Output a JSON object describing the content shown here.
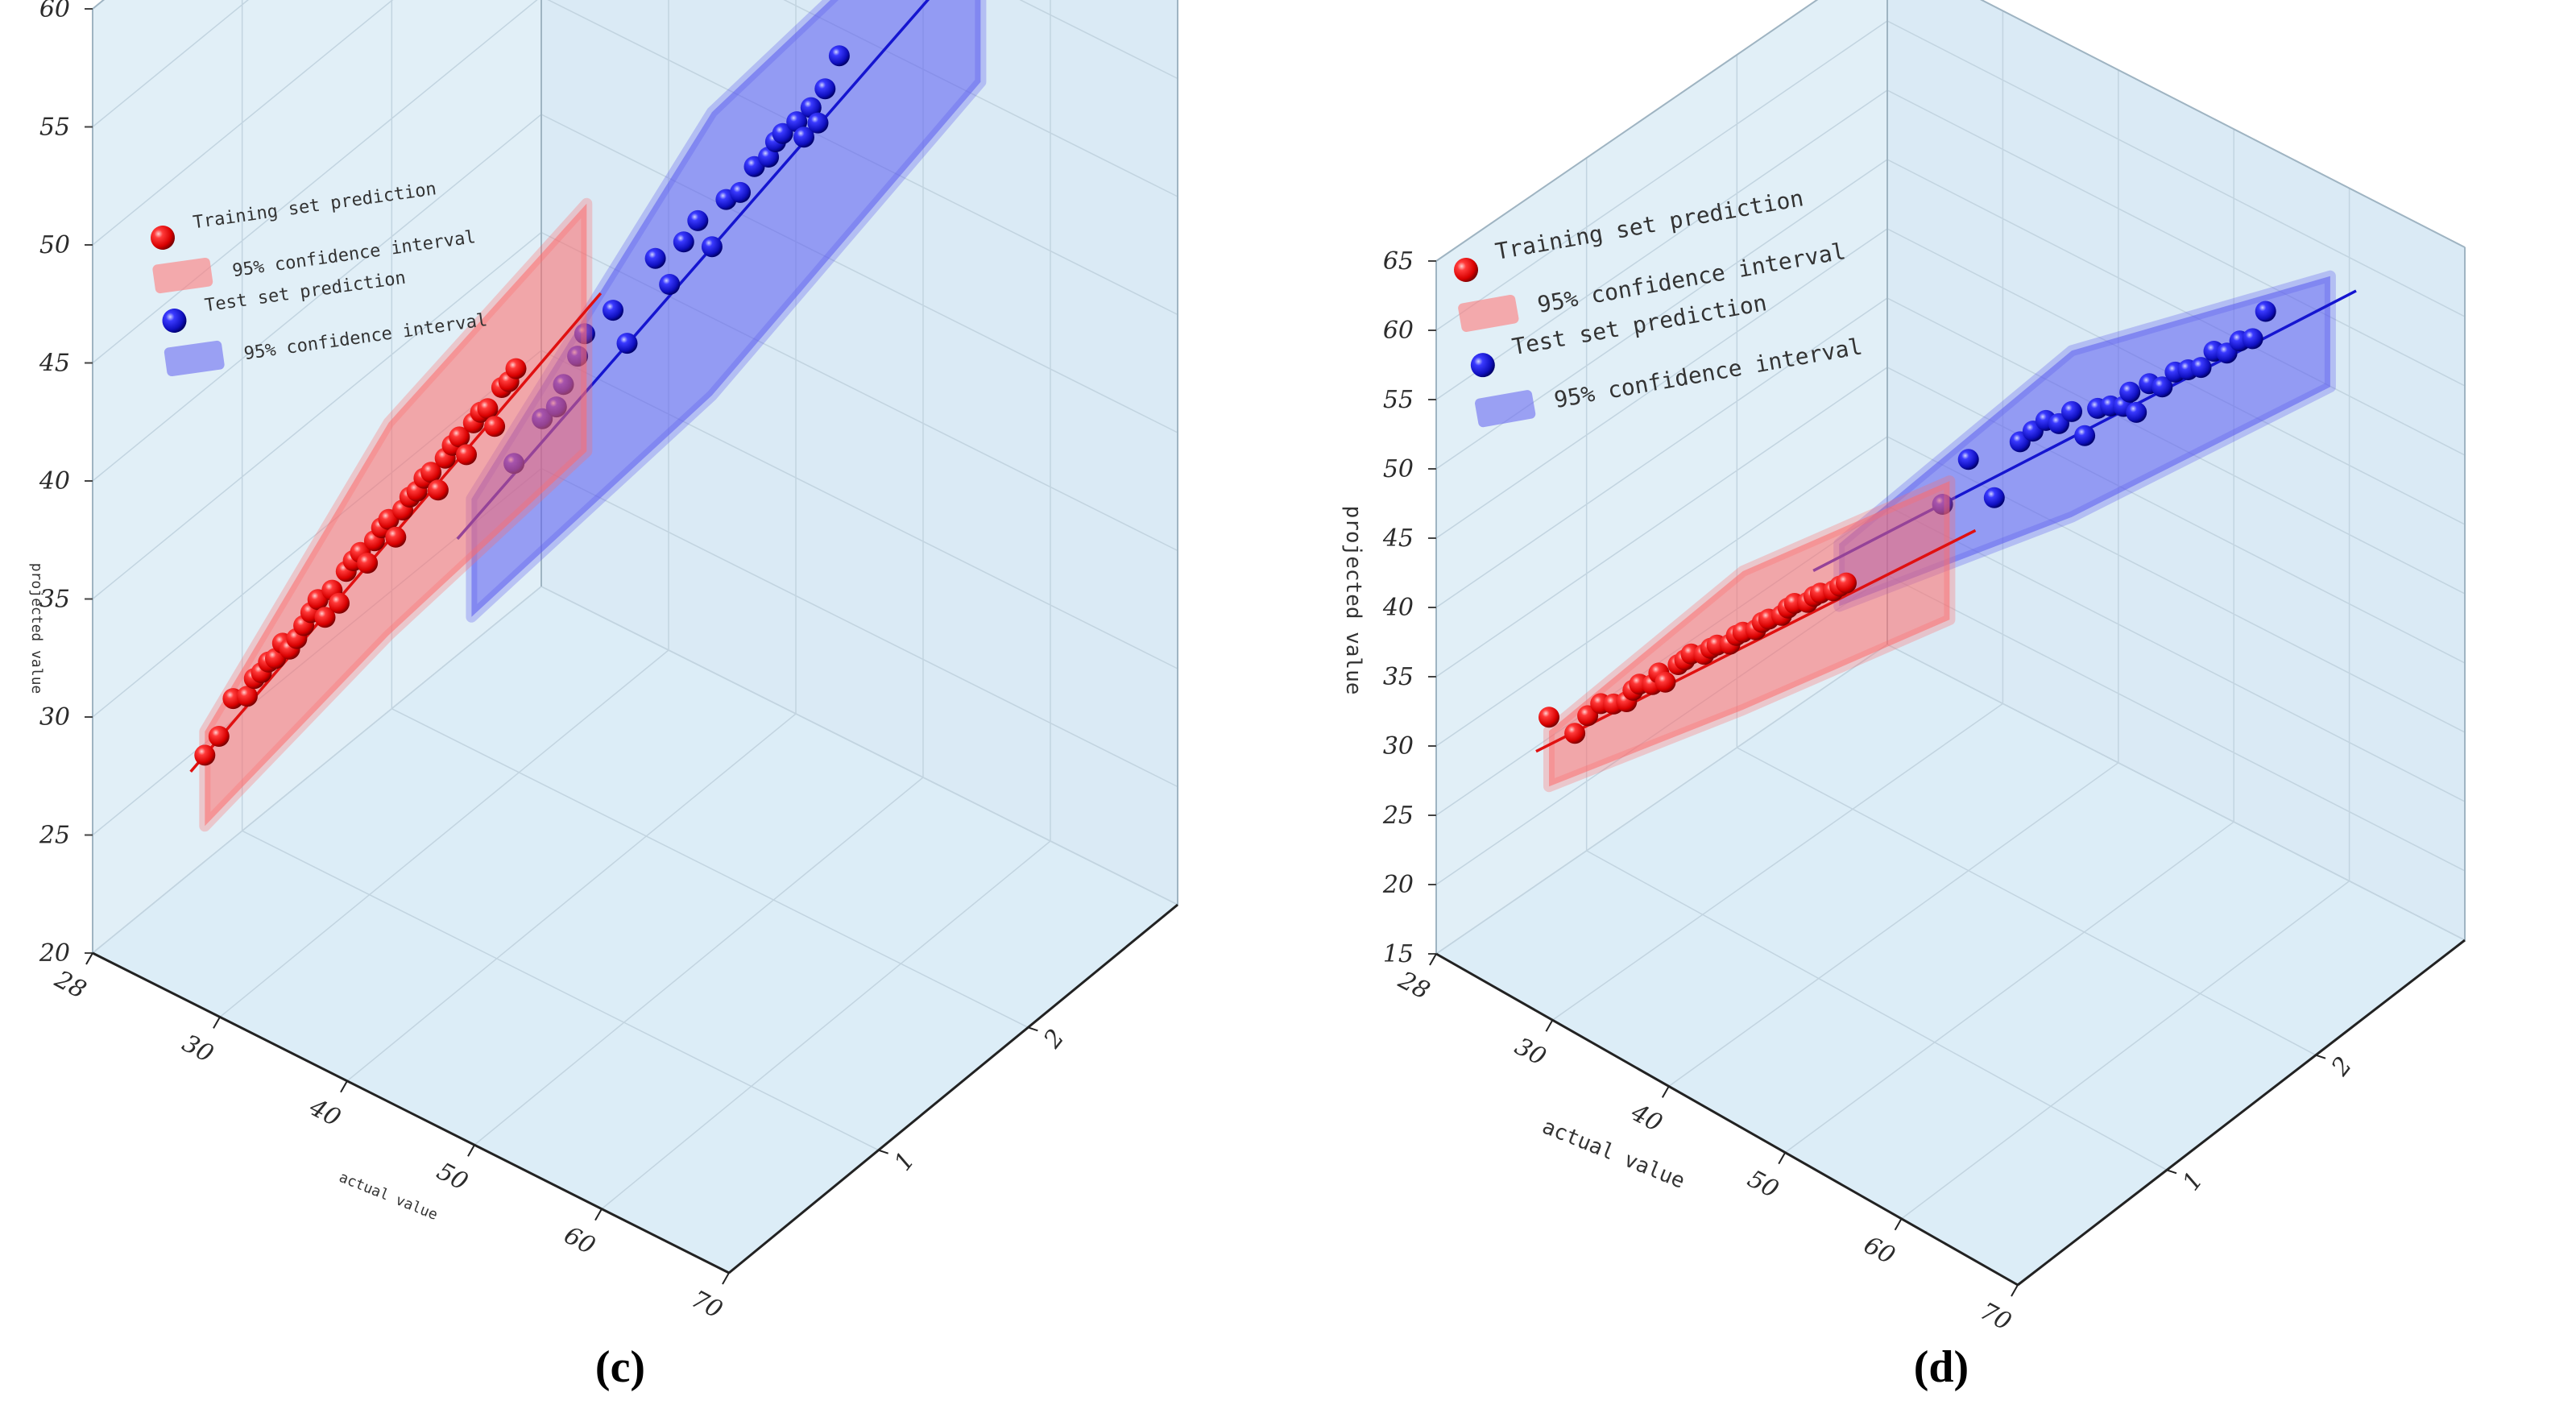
{
  "chart_data": [
    {
      "type": "scatter",
      "panel_label": "(c)",
      "xlabel": "actual value",
      "ylabel": "projected value",
      "y_ticks": [
        "20",
        "25",
        "30",
        "35",
        "40",
        "45",
        "50",
        "55",
        "60"
      ],
      "x_ticks": [
        "28",
        "30",
        "40",
        "50",
        "60",
        "70"
      ],
      "z_ticks": [
        "1",
        "2"
      ],
      "ylim": [
        20,
        60
      ],
      "xlim": [
        25,
        70
      ],
      "legend": {
        "position": "top-left",
        "entries": [
          "Training set prediction",
          "95% confidence interval",
          "Test set prediction",
          "95% confidence interval"
        ]
      },
      "series": [
        {
          "name": "Training set prediction",
          "color": "#e01010",
          "z": 1,
          "fit_line": [
            [
              24,
              23.5
            ],
            [
              53,
              52.5
            ]
          ],
          "confidence_band": [
            [
              25,
              21.5,
              25.5
            ],
            [
              38,
              33.5,
              42.5
            ],
            [
              52,
              45.5,
              56
            ]
          ],
          "points": [
            [
              25,
              24.5
            ],
            [
              26,
              25.6
            ],
            [
              27,
              27.5
            ],
            [
              28,
              27.9
            ],
            [
              28.5,
              28.8
            ],
            [
              29,
              29.2
            ],
            [
              29.5,
              29.8
            ],
            [
              30,
              30.1
            ],
            [
              30.5,
              30.9
            ],
            [
              31,
              30.8
            ],
            [
              31.5,
              31.4
            ],
            [
              32,
              32.1
            ],
            [
              32.5,
              32.8
            ],
            [
              33,
              33.5
            ],
            [
              33.5,
              32.9
            ],
            [
              34,
              34.2
            ],
            [
              34.5,
              33.8
            ],
            [
              35,
              35.3
            ],
            [
              35.5,
              35.9
            ],
            [
              36,
              36.4
            ],
            [
              36.5,
              36.1
            ],
            [
              37,
              37.2
            ],
            [
              37.5,
              37.9
            ],
            [
              38,
              38.4
            ],
            [
              38.5,
              37.8
            ],
            [
              39,
              39.1
            ],
            [
              39.5,
              39.8
            ],
            [
              40,
              40.2
            ],
            [
              40.5,
              40.9
            ],
            [
              41,
              41.3
            ],
            [
              41.5,
              40.7
            ],
            [
              42,
              42.2
            ],
            [
              42.5,
              42.9
            ],
            [
              43,
              43.4
            ],
            [
              43.5,
              42.8
            ],
            [
              44,
              44.3
            ],
            [
              44.5,
              44.9
            ],
            [
              45,
              45.2
            ],
            [
              45.5,
              44.6
            ],
            [
              46,
              46.4
            ],
            [
              46.5,
              46.8
            ],
            [
              47,
              47.5
            ]
          ]
        },
        {
          "name": "Test set prediction",
          "color": "#1515d0",
          "z": 2,
          "fit_line": [
            [
              27,
              26.5
            ],
            [
              67,
              66
            ]
          ],
          "confidence_band": [
            [
              28,
              23.5,
              28.5
            ],
            [
              45,
              38,
              50
            ],
            [
              64,
              57,
              66.5
            ]
          ],
          "points": [
            [
              31,
              30.9
            ],
            [
              33,
              33.4
            ],
            [
              34,
              34.2
            ],
            [
              34.5,
              35.3
            ],
            [
              35.5,
              36.8
            ],
            [
              36,
              37.9
            ],
            [
              38,
              39.5
            ],
            [
              39,
              38.4
            ],
            [
              41,
              42.6
            ],
            [
              42,
              41.8
            ],
            [
              43,
              43.9
            ],
            [
              44,
              45.1
            ],
            [
              45,
              44.3
            ],
            [
              46,
              46.6
            ],
            [
              47,
              47.2
            ],
            [
              48,
              48.6
            ],
            [
              49,
              49.3
            ],
            [
              49.5,
              50.1
            ],
            [
              50,
              50.6
            ],
            [
              51,
              51.4
            ],
            [
              51.5,
              50.9
            ],
            [
              52,
              52.3
            ],
            [
              52.5,
              51.8
            ],
            [
              53,
              53.4
            ],
            [
              54,
              55.1
            ]
          ]
        }
      ]
    },
    {
      "type": "scatter",
      "panel_label": "(d)",
      "xlabel": "actual value",
      "ylabel": "projected value",
      "y_ticks": [
        "15",
        "20",
        "25",
        "30",
        "35",
        "40",
        "45",
        "50",
        "55",
        "60",
        "65"
      ],
      "x_ticks": [
        "28",
        "30",
        "40",
        "50",
        "60",
        "70"
      ],
      "z_ticks": [
        "1",
        "2"
      ],
      "ylim": [
        15,
        65
      ],
      "xlim": [
        25,
        70
      ],
      "legend": {
        "position": "top-left",
        "entries": [
          "Training set prediction",
          "95% confidence interval",
          "Test set prediction",
          "95% confidence interval"
        ]
      },
      "series": [
        {
          "name": "Training set prediction",
          "color": "#e01010",
          "z": 1,
          "fit_line": [
            [
              24,
              23.5
            ],
            [
              58,
              57.5
            ]
          ],
          "confidence_band": [
            [
              25,
              21.5,
              25.5
            ],
            [
              40,
              35,
              45
            ],
            [
              56,
              50,
              60
            ]
          ],
          "points": [
            [
              25,
              26.5
            ],
            [
              27,
              26.4
            ],
            [
              28,
              28.2
            ],
            [
              29,
              29.6
            ],
            [
              30,
              30.1
            ],
            [
              31,
              30.8
            ],
            [
              31.5,
              31.9
            ],
            [
              32,
              32.6
            ],
            [
              33,
              33.1
            ],
            [
              33.5,
              34.2
            ],
            [
              34,
              33.8
            ],
            [
              35,
              35.6
            ],
            [
              35.5,
              36.2
            ],
            [
              36,
              36.9
            ],
            [
              37,
              37.4
            ],
            [
              37.5,
              38.1
            ],
            [
              38,
              38.6
            ],
            [
              39,
              39.2
            ],
            [
              39.5,
              40.1
            ],
            [
              40,
              40.6
            ],
            [
              41,
              41.3
            ],
            [
              41.5,
              42.1
            ],
            [
              42,
              42.6
            ],
            [
              43,
              43.4
            ],
            [
              43.5,
              44.2
            ],
            [
              44,
              44.8
            ],
            [
              45,
              45.4
            ],
            [
              45.5,
              46.1
            ],
            [
              46,
              46.6
            ],
            [
              47,
              47.3
            ],
            [
              47.5,
              47.9
            ],
            [
              48,
              48.4
            ]
          ]
        },
        {
          "name": "Test set prediction",
          "color": "#1515d0",
          "z": 2,
          "fit_line": [
            [
              28,
              27.5
            ],
            [
              70,
              70
            ]
          ],
          "confidence_band": [
            [
              30,
              26,
              30.5
            ],
            [
              48,
              42,
              54
            ],
            [
              68,
              62,
              70
            ]
          ],
          "points": [
            [
              38,
              37.6
            ],
            [
              40,
              41.9
            ],
            [
              42,
              40.2
            ],
            [
              44,
              45.3
            ],
            [
              45,
              46.6
            ],
            [
              46,
              47.9
            ],
            [
              47,
              48.2
            ],
            [
              48,
              49.6
            ],
            [
              49,
              48.4
            ],
            [
              50,
              50.9
            ],
            [
              51,
              51.6
            ],
            [
              52,
              52.1
            ],
            [
              52.5,
              53.4
            ],
            [
              53,
              52.2
            ],
            [
              54,
              54.8
            ],
            [
              55,
              55.1
            ],
            [
              56,
              56.7
            ],
            [
              57,
              57.4
            ],
            [
              58,
              58.1
            ],
            [
              59,
              59.8
            ],
            [
              60,
              60.2
            ],
            [
              61,
              61.6
            ],
            [
              62,
              62.3
            ],
            [
              63,
              64.8
            ]
          ]
        }
      ]
    }
  ]
}
